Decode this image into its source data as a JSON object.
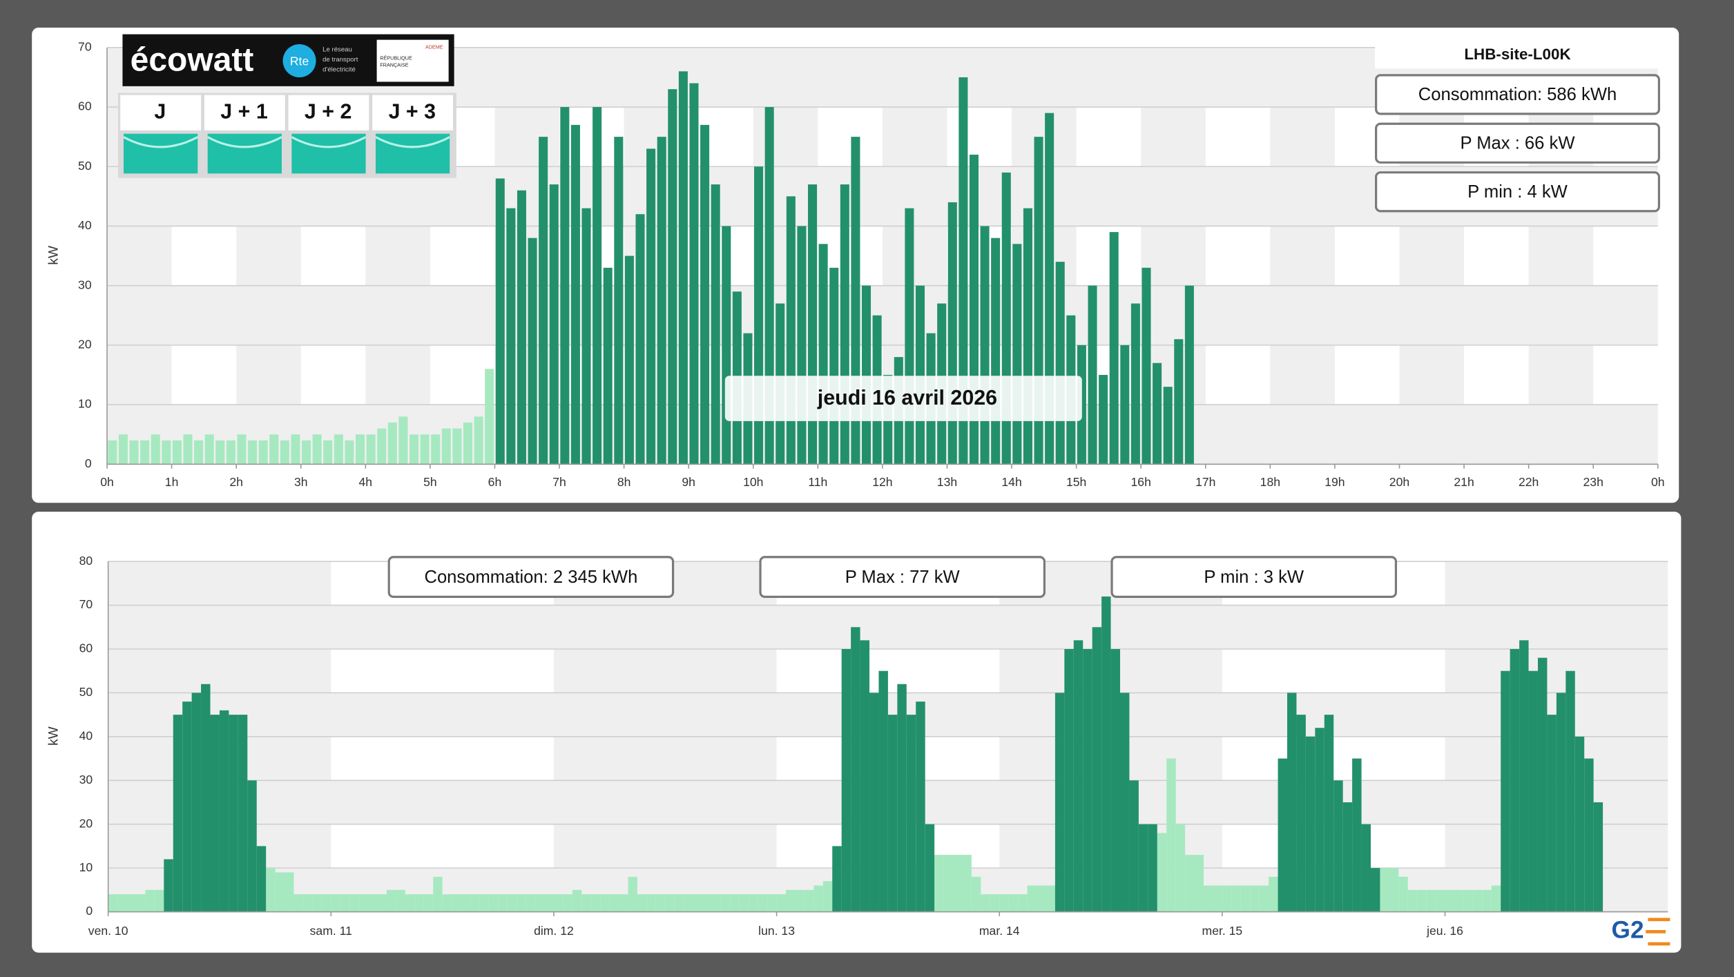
{
  "ecowatt": {
    "logo": "écowatt",
    "rte": "Rte",
    "rte_caption": [
      "Le réseau",
      "de transport",
      "d'électricité"
    ],
    "flag": [
      "RÉPUBLIQUE",
      "FRANÇAISE"
    ],
    "ademe": "ADEME",
    "days": [
      "J",
      "J + 1",
      "J + 2",
      "J + 3"
    ]
  },
  "footer_logo": "G2",
  "chart_data": [
    {
      "type": "bar",
      "title": "LHB-site-L00K",
      "date_label": "jeudi 16 avril 2026",
      "y_label": "kW",
      "info_boxes": [
        "Consommation: 586 kWh",
        "P Max :  66 kW",
        "P min : 4 kW"
      ],
      "xlim": [
        0,
        24
      ],
      "xticks": [
        {
          "value": 0,
          "label": "0h"
        },
        {
          "value": 1,
          "label": "1h"
        },
        {
          "value": 2,
          "label": "2h"
        },
        {
          "value": 3,
          "label": "3h"
        },
        {
          "value": 4,
          "label": "4h"
        },
        {
          "value": 5,
          "label": "5h"
        },
        {
          "value": 6,
          "label": "6h"
        },
        {
          "value": 7,
          "label": "7h"
        },
        {
          "value": 8,
          "label": "8h"
        },
        {
          "value": 9,
          "label": "9h"
        },
        {
          "value": 10,
          "label": "10h"
        },
        {
          "value": 11,
          "label": "11h"
        },
        {
          "value": 12,
          "label": "12h"
        },
        {
          "value": 13,
          "label": "13h"
        },
        {
          "value": 14,
          "label": "14h"
        },
        {
          "value": 15,
          "label": "15h"
        },
        {
          "value": 16,
          "label": "16h"
        },
        {
          "value": 17,
          "label": "17h"
        },
        {
          "value": 18,
          "label": "18h"
        },
        {
          "value": 19,
          "label": "19h"
        },
        {
          "value": 20,
          "label": "20h"
        },
        {
          "value": 21,
          "label": "21h"
        },
        {
          "value": 22,
          "label": "22h"
        },
        {
          "value": 23,
          "label": "23h"
        },
        {
          "value": 24,
          "label": "0h"
        }
      ],
      "ylim": [
        0,
        70
      ],
      "yticks": [
        0,
        10,
        20,
        30,
        40,
        50,
        60,
        70
      ],
      "grid": true,
      "series": [
        {
          "color": "#a6e9c0",
          "values": [
            4,
            5,
            4,
            4,
            5,
            4,
            4,
            5,
            4,
            5,
            4,
            4,
            5,
            4,
            4,
            5,
            4,
            5,
            4,
            5,
            4,
            5,
            4,
            5,
            5,
            6,
            7,
            8,
            5,
            5,
            5,
            6,
            6,
            7,
            8,
            16,
            null,
            null,
            null,
            null,
            null,
            null,
            null,
            null,
            null,
            null,
            null,
            null,
            null,
            null,
            null,
            null,
            null,
            null,
            null,
            null,
            null,
            null,
            null,
            null,
            null,
            null,
            null,
            null,
            null,
            null,
            null,
            null,
            null,
            null,
            null,
            null,
            null,
            null,
            null,
            null,
            null,
            null,
            null,
            null,
            null,
            null,
            null,
            null,
            null,
            null,
            null,
            null,
            null,
            null,
            null,
            null,
            null,
            null,
            null,
            null,
            null,
            null,
            null,
            null,
            null
          ]
        },
        {
          "color": "#23906c",
          "values": [
            null,
            null,
            null,
            null,
            null,
            null,
            null,
            null,
            null,
            null,
            null,
            null,
            null,
            null,
            null,
            null,
            null,
            null,
            null,
            null,
            null,
            null,
            null,
            null,
            null,
            null,
            null,
            null,
            null,
            null,
            null,
            null,
            null,
            null,
            null,
            null,
            48,
            43,
            46,
            38,
            55,
            47,
            60,
            57,
            43,
            60,
            33,
            55,
            35,
            42,
            53,
            55,
            63,
            66,
            64,
            57,
            47,
            40,
            29,
            22,
            50,
            60,
            27,
            45,
            40,
            47,
            37,
            33,
            47,
            55,
            30,
            25,
            15,
            18,
            43,
            30,
            22,
            27,
            44,
            65,
            52,
            40,
            38,
            49,
            37,
            43,
            55,
            59,
            34,
            25,
            20,
            30,
            15,
            39,
            20,
            27,
            33,
            17,
            13,
            21,
            30
          ]
        }
      ]
    },
    {
      "type": "bar",
      "y_label": "kW",
      "info_boxes": [
        "Consommation: 2 345 kWh",
        "P Max :  77 kW",
        "P min : 3 kW"
      ],
      "xlim": [
        0,
        168
      ],
      "xticks": [
        {
          "value": 0,
          "label": "ven. 10"
        },
        {
          "value": 24,
          "label": "sam. 11"
        },
        {
          "value": 48,
          "label": "dim. 12"
        },
        {
          "value": 72,
          "label": "lun. 13"
        },
        {
          "value": 96,
          "label": "mar. 14"
        },
        {
          "value": 120,
          "label": "mer. 15"
        },
        {
          "value": 144,
          "label": "jeu. 16"
        }
      ],
      "ylim": [
        0,
        80
      ],
      "yticks": [
        0,
        10,
        20,
        30,
        40,
        50,
        60,
        70,
        80
      ],
      "grid": true,
      "series": [
        {
          "color": "#a6e9c0",
          "values": [
            4,
            4,
            4,
            4,
            5,
            5,
            null,
            null,
            null,
            null,
            null,
            null,
            null,
            null,
            null,
            null,
            null,
            10,
            9,
            9,
            4,
            4,
            4,
            4,
            4,
            4,
            4,
            4,
            4,
            4,
            5,
            5,
            4,
            4,
            4,
            8,
            4,
            4,
            4,
            4,
            4,
            4,
            4,
            4,
            4,
            4,
            4,
            4,
            4,
            4,
            5,
            4,
            4,
            4,
            4,
            4,
            8,
            4,
            4,
            4,
            4,
            4,
            4,
            4,
            4,
            4,
            4,
            4,
            4,
            4,
            4,
            4,
            4,
            5,
            5,
            5,
            6,
            7,
            null,
            null,
            null,
            null,
            null,
            null,
            null,
            null,
            null,
            null,
            null,
            13,
            13,
            13,
            13,
            8,
            4,
            4,
            4,
            4,
            4,
            6,
            6,
            6,
            null,
            null,
            null,
            null,
            null,
            null,
            null,
            null,
            null,
            null,
            null,
            18,
            35,
            20,
            13,
            13,
            6,
            6,
            6,
            6,
            6,
            6,
            6,
            8,
            null,
            null,
            null,
            null,
            null,
            null,
            null,
            null,
            null,
            null,
            null,
            10,
            10,
            8,
            5,
            5,
            5,
            5,
            5,
            5,
            5,
            5,
            5,
            6,
            null,
            null,
            null,
            null,
            null,
            null,
            null,
            null,
            null,
            null,
            null
          ]
        },
        {
          "color": "#23906c",
          "values": [
            null,
            null,
            null,
            null,
            null,
            null,
            12,
            45,
            48,
            50,
            52,
            45,
            46,
            45,
            45,
            30,
            15,
            null,
            null,
            null,
            null,
            null,
            null,
            null,
            null,
            null,
            null,
            null,
            null,
            null,
            null,
            null,
            null,
            null,
            null,
            null,
            null,
            null,
            null,
            null,
            null,
            null,
            null,
            null,
            null,
            null,
            null,
            null,
            null,
            null,
            null,
            null,
            null,
            null,
            null,
            null,
            null,
            null,
            null,
            null,
            null,
            null,
            null,
            null,
            null,
            null,
            null,
            null,
            null,
            null,
            null,
            null,
            null,
            null,
            null,
            null,
            null,
            null,
            15,
            60,
            65,
            62,
            50,
            55,
            45,
            52,
            45,
            48,
            20,
            null,
            null,
            null,
            null,
            null,
            null,
            null,
            null,
            null,
            null,
            null,
            null,
            null,
            50,
            60,
            62,
            60,
            65,
            72,
            60,
            50,
            30,
            20,
            20,
            null,
            null,
            null,
            null,
            null,
            null,
            null,
            null,
            null,
            null,
            null,
            null,
            null,
            35,
            50,
            45,
            40,
            42,
            45,
            30,
            25,
            35,
            20,
            10,
            null,
            null,
            null,
            null,
            null,
            null,
            null,
            null,
            null,
            null,
            null,
            null,
            null,
            55,
            60,
            62,
            55,
            58,
            45,
            50,
            55,
            40,
            35,
            25
          ]
        }
      ]
    }
  ]
}
